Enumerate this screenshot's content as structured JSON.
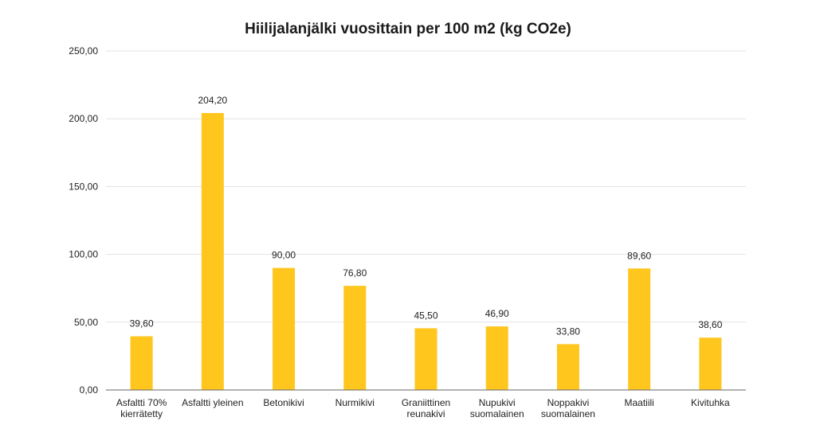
{
  "chart_data": {
    "type": "bar",
    "title": "Hiilijalanjälki vuosittain per 100 m2 (kg CO2e)",
    "xlabel": "",
    "ylabel": "",
    "categories": [
      "Asfaltti 70% kierrätetty",
      "Asfaltti yleinen",
      "Betonikivi",
      "Nurmikivi",
      "Graniittinen reunakivi",
      "Nupukivi suomalainen",
      "Noppakivi suomalainen",
      "Maatiili",
      "Kivituhka"
    ],
    "category_lines": [
      [
        "Asfaltti 70%",
        "kierrätetty"
      ],
      [
        "Asfaltti yleinen"
      ],
      [
        "Betonikivi"
      ],
      [
        "Nurmikivi"
      ],
      [
        "Graniittinen",
        "reunakivi"
      ],
      [
        "Nupukivi",
        "suomalainen"
      ],
      [
        "Noppakivi",
        "suomalainen"
      ],
      [
        "Maatiili"
      ],
      [
        "Kivituhka"
      ]
    ],
    "values": [
      39.6,
      204.2,
      90.0,
      76.8,
      45.5,
      46.9,
      33.8,
      89.6,
      38.6
    ],
    "value_labels": [
      "39,60",
      "204,20",
      "90,00",
      "76,80",
      "45,50",
      "46,90",
      "33,80",
      "89,60",
      "38,60"
    ],
    "ylim": [
      0,
      250
    ],
    "yticks": [
      0,
      50,
      100,
      150,
      200,
      250
    ],
    "ytick_labels": [
      "0,00",
      "50,00",
      "100,00",
      "150,00",
      "200,00",
      "250,00"
    ],
    "grid": true,
    "legend": "none",
    "bar_color": "#FFC61E",
    "grid_color": "#e2e2e2",
    "axis_color": "#666666"
  }
}
